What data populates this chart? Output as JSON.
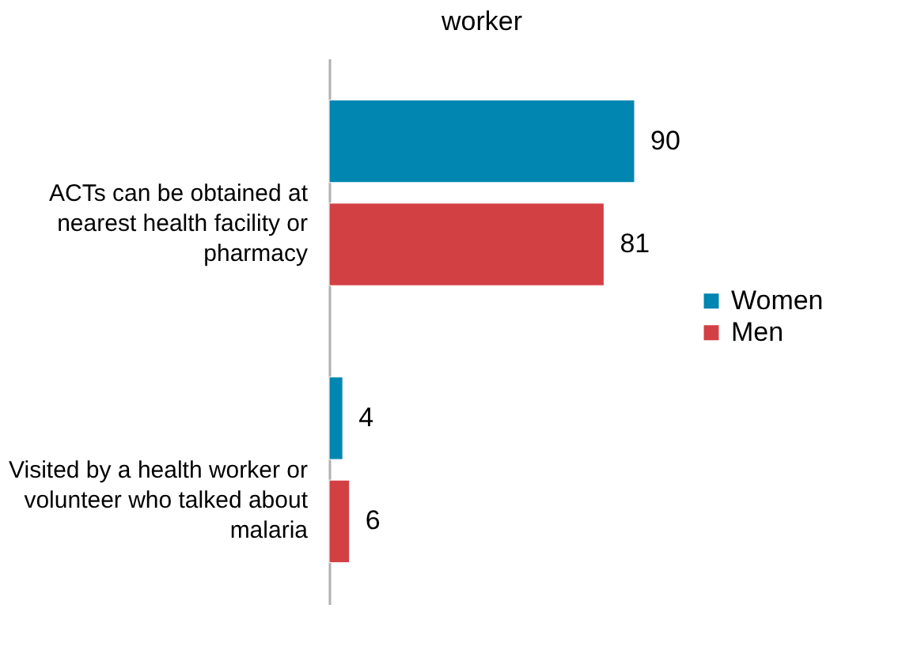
{
  "chart_data": {
    "type": "bar",
    "orientation": "horizontal",
    "title": "worker",
    "categories": [
      "ACTs can be obtained at nearest health facility or pharmacy",
      "Visited by a health worker or volunteer who talked about malaria"
    ],
    "series": [
      {
        "name": "Women",
        "color": "#0086b0",
        "values": [
          90,
          4
        ]
      },
      {
        "name": "Men",
        "color": "#d34043",
        "values": [
          81,
          6
        ]
      }
    ],
    "data_labels": true,
    "legend": "right",
    "tick_labels": "y"
  }
}
